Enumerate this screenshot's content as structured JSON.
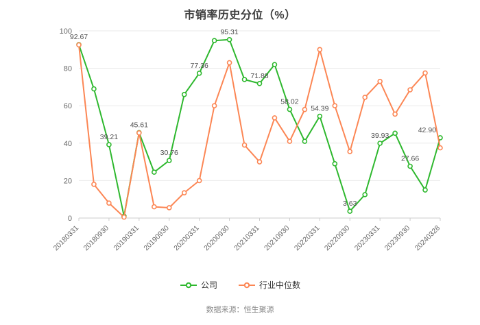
{
  "title": "市销率历史分位（%）",
  "source": "数据来源：恒生聚源",
  "legend": [
    {
      "label": "公司",
      "color": "#2eb82e"
    },
    {
      "label": "行业中位数",
      "color": "#fc8654"
    }
  ],
  "chart_data": {
    "type": "line",
    "title": "市销率历史分位（%）",
    "x_tick_labels": [
      "20180331",
      "20180930",
      "20190331",
      "20190930",
      "20200331",
      "20200930",
      "20210331",
      "20210930",
      "20220331",
      "20220930",
      "20230331",
      "20230930",
      "20240328"
    ],
    "x_note": "quarterly data points; every second point carries an axis tick label",
    "y_ticks": [
      0,
      20,
      40,
      60,
      80,
      100
    ],
    "ylim": [
      0,
      100
    ],
    "grid": "horizontal",
    "legend_position": "bottom",
    "label_interval": 2,
    "series": [
      {
        "name": "公司",
        "color": "#2eb82e",
        "show_labels": true,
        "values": [
          92.67,
          69,
          39.21,
          1,
          45.61,
          24.5,
          30.76,
          66,
          77.36,
          94.8,
          95.31,
          74,
          71.88,
          82,
          58.02,
          41,
          54.39,
          29,
          3.63,
          12.5,
          39.93,
          45.3,
          27.66,
          15,
          42.9
        ]
      },
      {
        "name": "行业中位数",
        "color": "#fc8654",
        "show_labels": false,
        "values": [
          92.5,
          18,
          8,
          0.5,
          45.5,
          6,
          5.5,
          13.5,
          20,
          60,
          83,
          39,
          30,
          53.5,
          41,
          58,
          90,
          60,
          35.5,
          64.5,
          73,
          55.5,
          68.5,
          77.5,
          37.5
        ]
      }
    ]
  }
}
